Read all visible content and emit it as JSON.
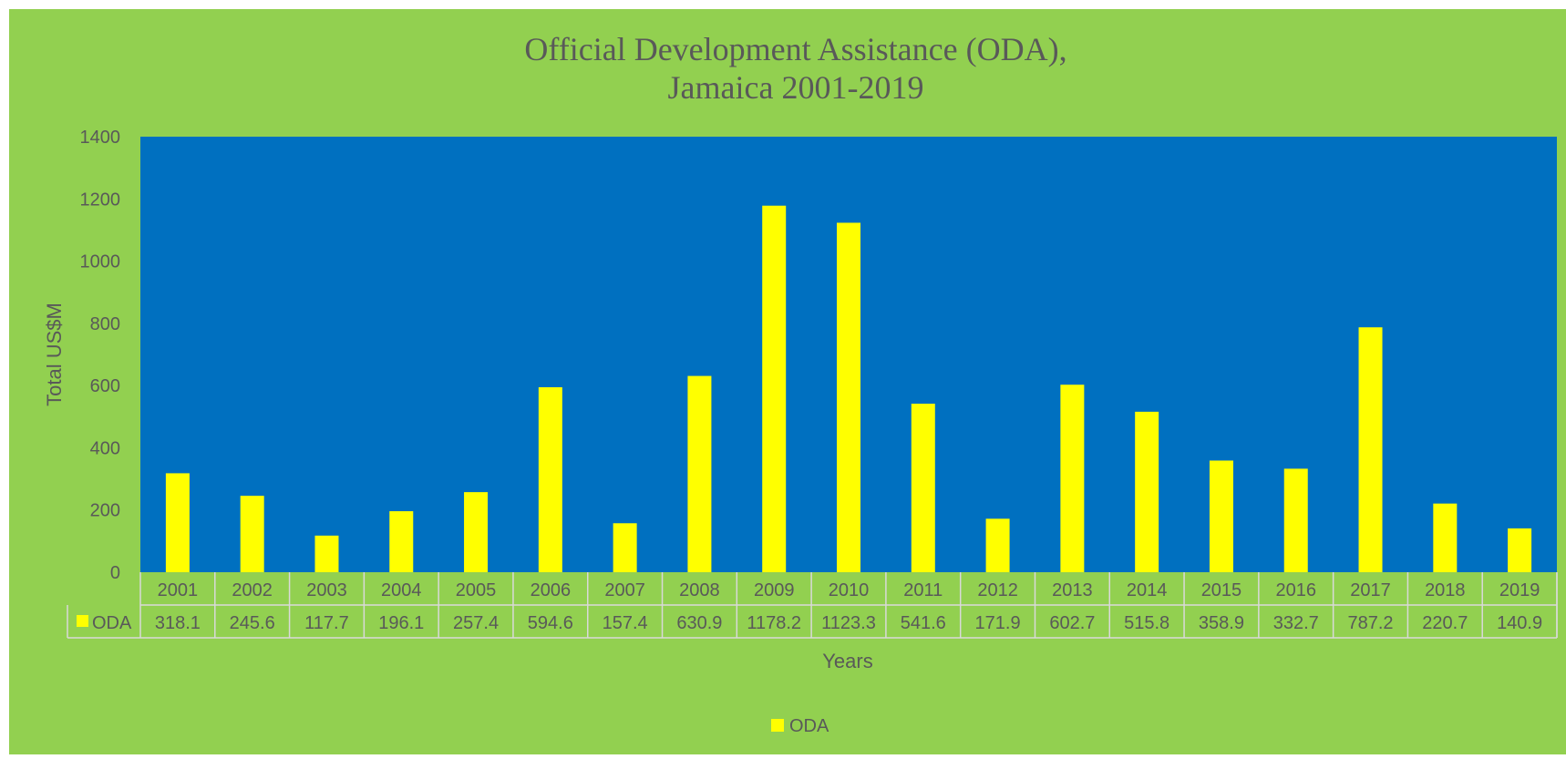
{
  "colors": {
    "chart_area": "#92D050",
    "plot_area": "#0070C0",
    "bar": "#FFFF00",
    "text": "#595959",
    "table_border": "#D9D9D9"
  },
  "chart_data": {
    "type": "bar",
    "title_lines": [
      "Official Development Assistance (ODA),",
      "Jamaica 2001-2019"
    ],
    "xlabel": "Years",
    "ylabel": "Total US$M",
    "ylim": [
      0,
      1400
    ],
    "yticks": [
      "0",
      "200",
      "400",
      "600",
      "800",
      "1000",
      "1200",
      "1400"
    ],
    "categories": [
      "2001",
      "2002",
      "2003",
      "2004",
      "2005",
      "2006",
      "2007",
      "2008",
      "2009",
      "2010",
      "2011",
      "2012",
      "2013",
      "2014",
      "2015",
      "2016",
      "2017",
      "2018",
      "2019"
    ],
    "series": [
      {
        "name": "ODA",
        "values": [
          318.1,
          245.6,
          117.7,
          196.1,
          257.4,
          594.6,
          157.4,
          630.9,
          1178.2,
          1123.3,
          541.6,
          171.9,
          602.7,
          515.8,
          358.9,
          332.7,
          787.2,
          220.7,
          140.9
        ],
        "labels": [
          "318.1",
          "245.6",
          "117.7",
          "196.1",
          "257.4",
          "594.6",
          "157.4",
          "630.9",
          "1178.2",
          "1123.3",
          "541.6",
          "171.9",
          "602.7",
          "515.8",
          "358.9",
          "332.7",
          "787.2",
          "220.7",
          "140.9"
        ]
      }
    ],
    "legend": {
      "position": "bottom",
      "label": "ODA"
    },
    "data_table": true,
    "grid": false
  }
}
